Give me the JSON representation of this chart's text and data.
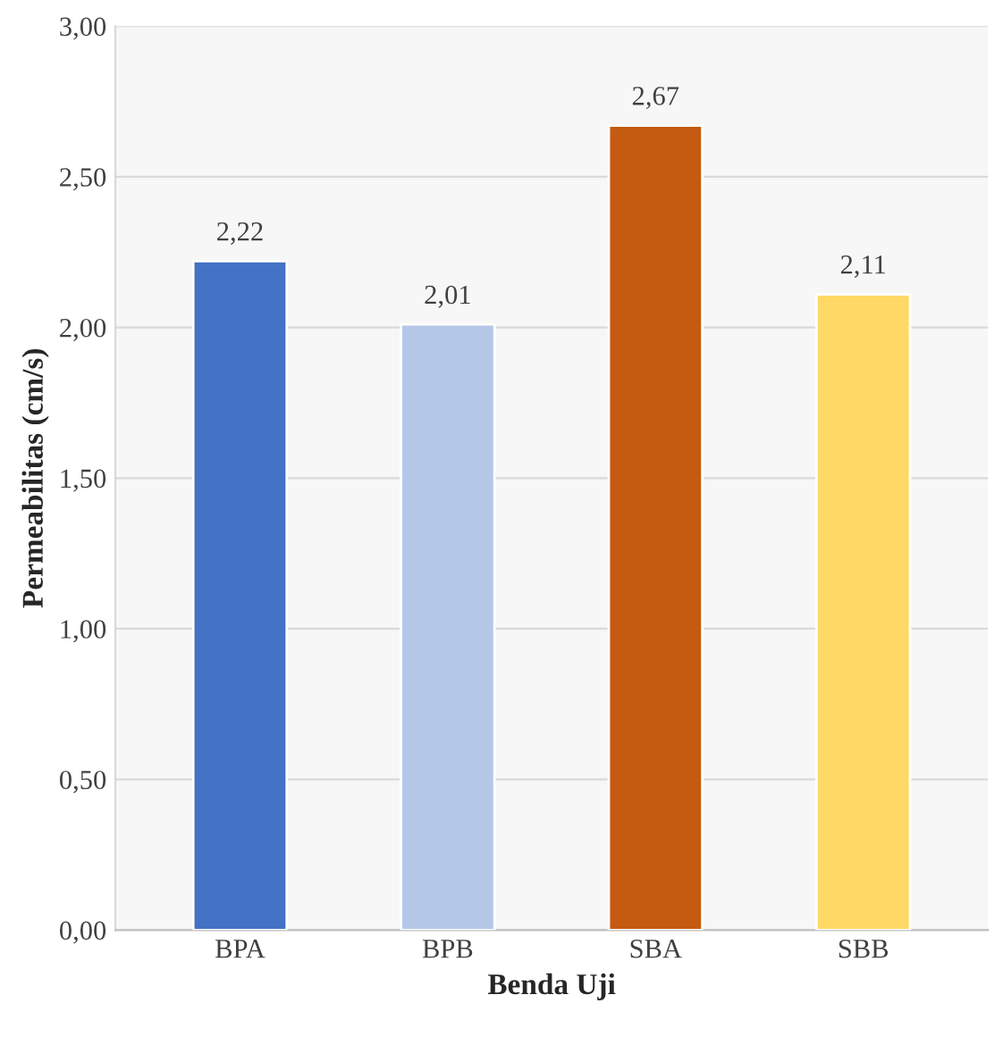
{
  "chart_data": {
    "type": "bar",
    "xlabel": "Benda Uji",
    "ylabel": "Permeabilitas (cm/s)",
    "categories": [
      "BPA",
      "BPB",
      "SBA",
      "SBB"
    ],
    "values": [
      2.22,
      2.01,
      2.67,
      2.11
    ],
    "colors": [
      "#4472c4",
      "#b4c7e7",
      "#c55a11",
      "#ffd966"
    ],
    "value_labels": [
      "2,22",
      "2,01",
      "2,67",
      "2,11"
    ],
    "ylim": [
      0,
      3
    ],
    "yticks": [
      {
        "value": 0,
        "label": "0,00"
      },
      {
        "value": 0.5,
        "label": "0,50"
      },
      {
        "value": 1,
        "label": "1,00"
      },
      {
        "value": 1.5,
        "label": "1,50"
      },
      {
        "value": 2,
        "label": "2,00"
      },
      {
        "value": 2.5,
        "label": "2,50"
      },
      {
        "value": 3,
        "label": "3,00"
      }
    ],
    "grid": "y",
    "legend": false
  }
}
